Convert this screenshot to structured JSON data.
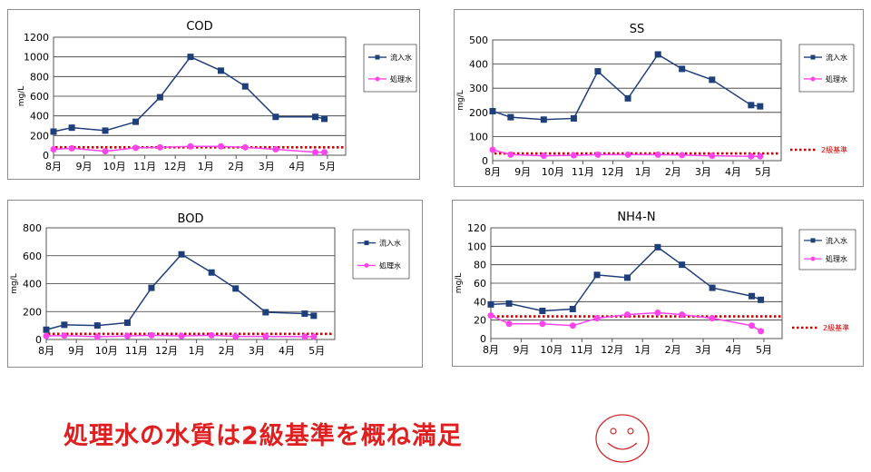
{
  "headline": "処理水の水質は2級基準を概ね満足",
  "colors": {
    "inflow": "#1f3f7a",
    "treated": "#ff44ee",
    "standard": "#cc0000",
    "grid": "#333333",
    "plotbg": "#ffffff",
    "headline": "#e02020",
    "smiley": "#cc2a2a"
  },
  "chart_data": [
    {
      "type": "line",
      "title": "COD",
      "ylabel": "mg/L",
      "ylim": [
        0,
        1200
      ],
      "yticks": [
        0,
        200,
        400,
        600,
        800,
        1000,
        1200
      ],
      "xlim": [
        0,
        9.6
      ],
      "xticks": [
        "8月",
        "9月",
        "10月",
        "11月",
        "12月",
        "1月",
        "2月",
        "3月",
        "4月",
        "5月"
      ],
      "legend_labels": [
        "流入水",
        "処理水"
      ],
      "standard": 80,
      "standard_label": "",
      "series": [
        {
          "name": "流入水",
          "x": [
            0,
            0.6,
            1.7,
            2.7,
            3.5,
            4.5,
            5.5,
            6.3,
            7.3,
            8.6,
            8.9
          ],
          "y": [
            240,
            280,
            250,
            340,
            590,
            1000,
            860,
            700,
            390,
            390,
            370
          ]
        },
        {
          "name": "処理水",
          "x": [
            0,
            0.6,
            1.7,
            2.7,
            3.5,
            4.5,
            5.5,
            6.3,
            7.3,
            8.6,
            8.9
          ],
          "y": [
            60,
            70,
            40,
            75,
            80,
            90,
            90,
            80,
            60,
            30,
            30
          ]
        }
      ]
    },
    {
      "type": "line",
      "title": "SS",
      "ylabel": "mg/L",
      "ylim": [
        0,
        500
      ],
      "yticks": [
        0,
        100,
        200,
        300,
        400,
        500
      ],
      "xlim": [
        0,
        9.6
      ],
      "xticks": [
        "8月",
        "9月",
        "10月",
        "11月",
        "12月",
        "1月",
        "2月",
        "3月",
        "4月",
        "5月"
      ],
      "legend_labels": [
        "流入水",
        "処理水"
      ],
      "standard": 30,
      "standard_label": "2級基準",
      "series": [
        {
          "name": "流入水",
          "x": [
            0,
            0.6,
            1.7,
            2.7,
            3.5,
            4.5,
            5.5,
            6.3,
            7.3,
            8.6,
            8.9
          ],
          "y": [
            205,
            180,
            170,
            175,
            370,
            258,
            440,
            380,
            335,
            230,
            225
          ]
        },
        {
          "name": "処理水",
          "x": [
            0,
            0.6,
            1.7,
            2.7,
            3.5,
            4.5,
            5.5,
            6.3,
            7.3,
            8.6,
            8.9
          ],
          "y": [
            45,
            25,
            20,
            22,
            25,
            25,
            25,
            23,
            20,
            18,
            18
          ]
        }
      ]
    },
    {
      "type": "line",
      "title": "BOD",
      "ylabel": "mg/L",
      "ylim": [
        0,
        800
      ],
      "yticks": [
        0,
        200,
        400,
        600,
        800
      ],
      "xlim": [
        0,
        9.6
      ],
      "xticks": [
        "8月",
        "9月",
        "10月",
        "11月",
        "12月",
        "1月",
        "2月",
        "3月",
        "4月",
        "5月"
      ],
      "legend_labels": [
        "流入水",
        "処理水"
      ],
      "standard": 40,
      "standard_label": "",
      "series": [
        {
          "name": "流入水",
          "x": [
            0,
            0.6,
            1.7,
            2.7,
            3.5,
            4.5,
            5.5,
            6.3,
            7.3,
            8.6,
            8.9
          ],
          "y": [
            70,
            105,
            100,
            120,
            370,
            610,
            480,
            365,
            195,
            185,
            170
          ]
        },
        {
          "name": "処理水",
          "x": [
            0,
            0.6,
            1.7,
            2.7,
            3.5,
            4.5,
            5.5,
            6.3,
            7.3,
            8.6,
            8.9
          ],
          "y": [
            25,
            28,
            20,
            25,
            30,
            25,
            30,
            22,
            22,
            20,
            20
          ]
        }
      ]
    },
    {
      "type": "line",
      "title": "NH4-N",
      "ylabel": "mg/L",
      "ylim": [
        0,
        120
      ],
      "yticks": [
        0,
        20,
        40,
        60,
        80,
        100,
        120
      ],
      "xlim": [
        0,
        9.6
      ],
      "xticks": [
        "8月",
        "9月",
        "10月",
        "11月",
        "12月",
        "1月",
        "2月",
        "3月",
        "4月",
        "5月"
      ],
      "legend_labels": [
        "流入水",
        "処理水"
      ],
      "standard": 24,
      "standard_label": "2級基準",
      "series": [
        {
          "name": "流入水",
          "x": [
            0,
            0.6,
            1.7,
            2.7,
            3.5,
            4.5,
            5.5,
            6.3,
            7.3,
            8.6,
            8.9
          ],
          "y": [
            37,
            38,
            30,
            32,
            69,
            66,
            99,
            80,
            55,
            46,
            42
          ]
        },
        {
          "name": "処理水",
          "x": [
            0,
            0.6,
            1.7,
            2.7,
            3.5,
            4.5,
            5.5,
            6.3,
            7.3,
            8.6,
            8.9
          ],
          "y": [
            25,
            16,
            16,
            14,
            22,
            26,
            28,
            26,
            22,
            14,
            8
          ]
        }
      ]
    }
  ]
}
